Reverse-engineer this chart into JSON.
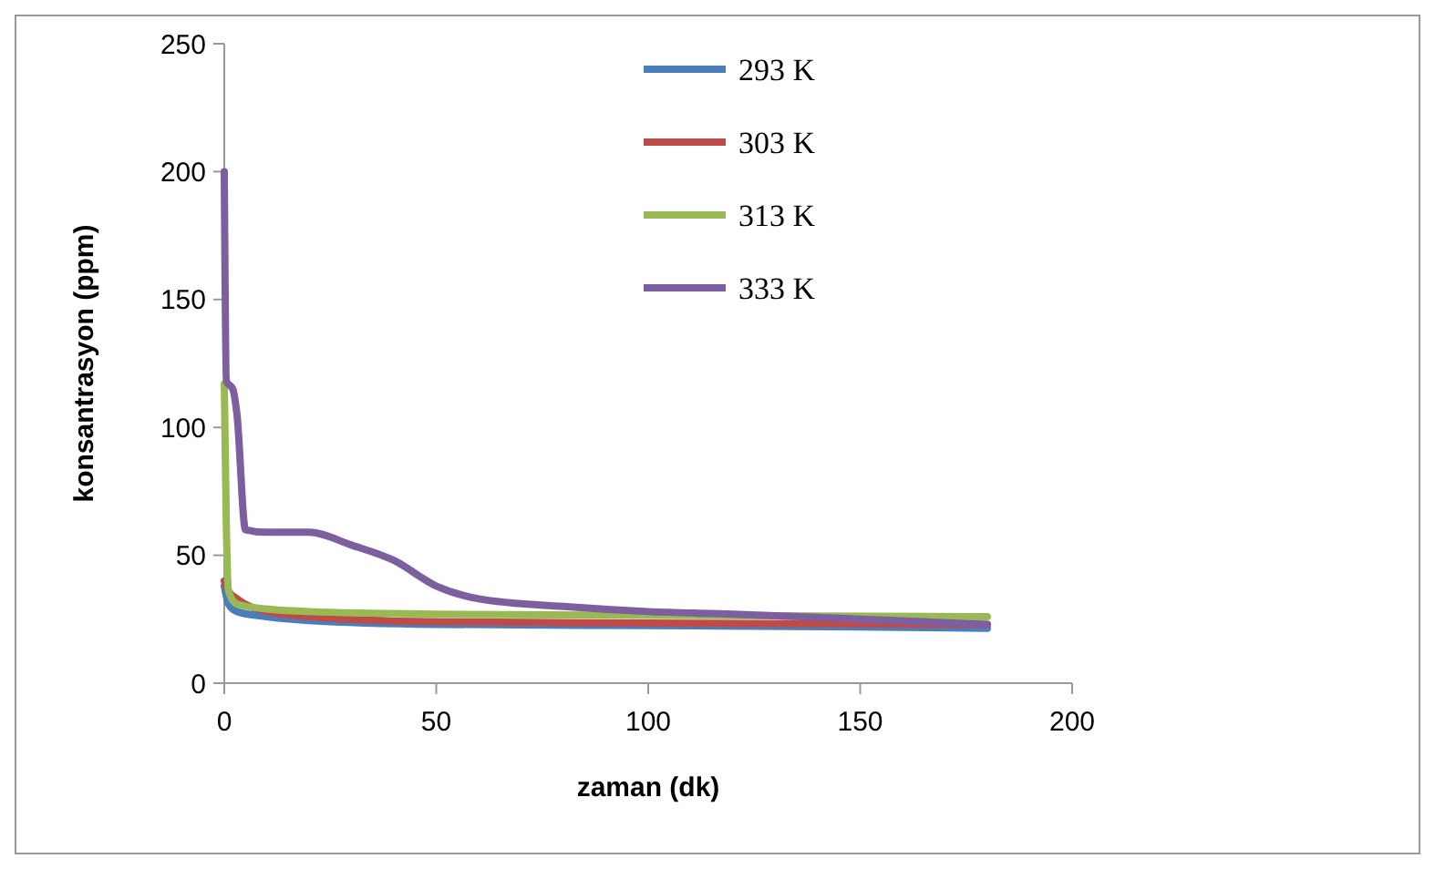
{
  "chart_data": {
    "type": "line",
    "xlabel": "zaman (dk)",
    "ylabel": "konsantrasyon (ppm)",
    "xlim": [
      0,
      200
    ],
    "xticks": [
      0,
      50,
      100,
      150,
      200
    ],
    "ylim": [
      0,
      250
    ],
    "yticks": [
      0,
      50,
      100,
      150,
      200,
      250
    ],
    "grid": false,
    "legend": "top",
    "marker": "none",
    "line_style": "solid",
    "series": [
      {
        "name": "293 K",
        "color": "#4a7ebb",
        "x": [
          0,
          1,
          3,
          10,
          20,
          50,
          100,
          150,
          180
        ],
        "values": [
          38,
          31,
          28,
          26,
          24.5,
          23,
          22.5,
          22,
          21.5
        ]
      },
      {
        "name": "303 K",
        "color": "#be4b48",
        "x": [
          0,
          1,
          3,
          10,
          20,
          50,
          100,
          180
        ],
        "values": [
          40,
          36,
          33,
          28,
          26,
          24,
          23.5,
          23
        ]
      },
      {
        "name": "313 K",
        "color": "#98b954",
        "x": [
          0,
          0.5,
          1,
          3,
          10,
          20,
          50,
          100,
          180
        ],
        "values": [
          117,
          60,
          36,
          31,
          29,
          28,
          27,
          26.5,
          26
        ]
      },
      {
        "name": "333 K",
        "color": "#7d5fa0",
        "x": [
          0,
          0.5,
          2,
          3,
          5,
          10,
          20,
          30,
          40,
          50,
          60,
          80,
          100,
          120,
          150,
          180
        ],
        "values": [
          200,
          118,
          115,
          105,
          60,
          59,
          59,
          54,
          48,
          38,
          33,
          30,
          28,
          27,
          25,
          23
        ]
      }
    ]
  }
}
